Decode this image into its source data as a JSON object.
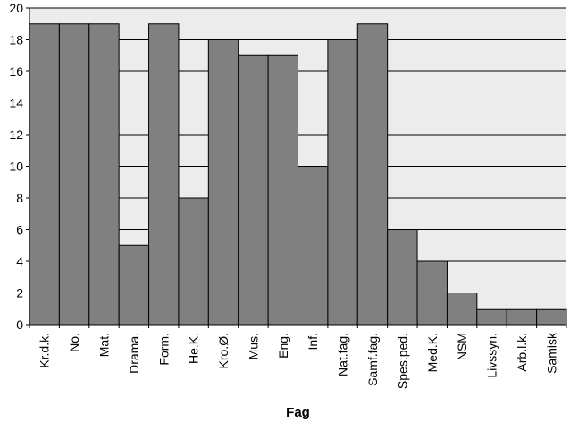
{
  "chart_data": {
    "type": "bar",
    "title": "",
    "xlabel": "Fag",
    "ylabel": "",
    "categories": [
      "Kr.d.k.",
      "No.",
      "Mat.",
      "Drama.",
      "Form.",
      "He.K.",
      "Kro.Ø.",
      "Mus.",
      "Eng.",
      "Inf.",
      "Nat.fag.",
      "Samf.fag.",
      "Spes.ped.",
      "Med.K.",
      "NSM",
      "Livssyn.",
      "Arb.l.k.",
      "Samisk"
    ],
    "values": [
      19,
      19,
      19,
      5,
      19,
      8,
      18,
      17,
      17,
      10,
      18,
      19,
      6,
      4,
      2,
      1,
      1,
      1
    ],
    "ylim": [
      0,
      20
    ],
    "yticks": [
      0,
      2,
      4,
      6,
      8,
      10,
      12,
      14,
      16,
      18,
      20
    ],
    "grid": true,
    "colors": {
      "bar": "#808080",
      "plot_background": "#ececec",
      "grid": "#000000",
      "axis": "#000000"
    }
  }
}
